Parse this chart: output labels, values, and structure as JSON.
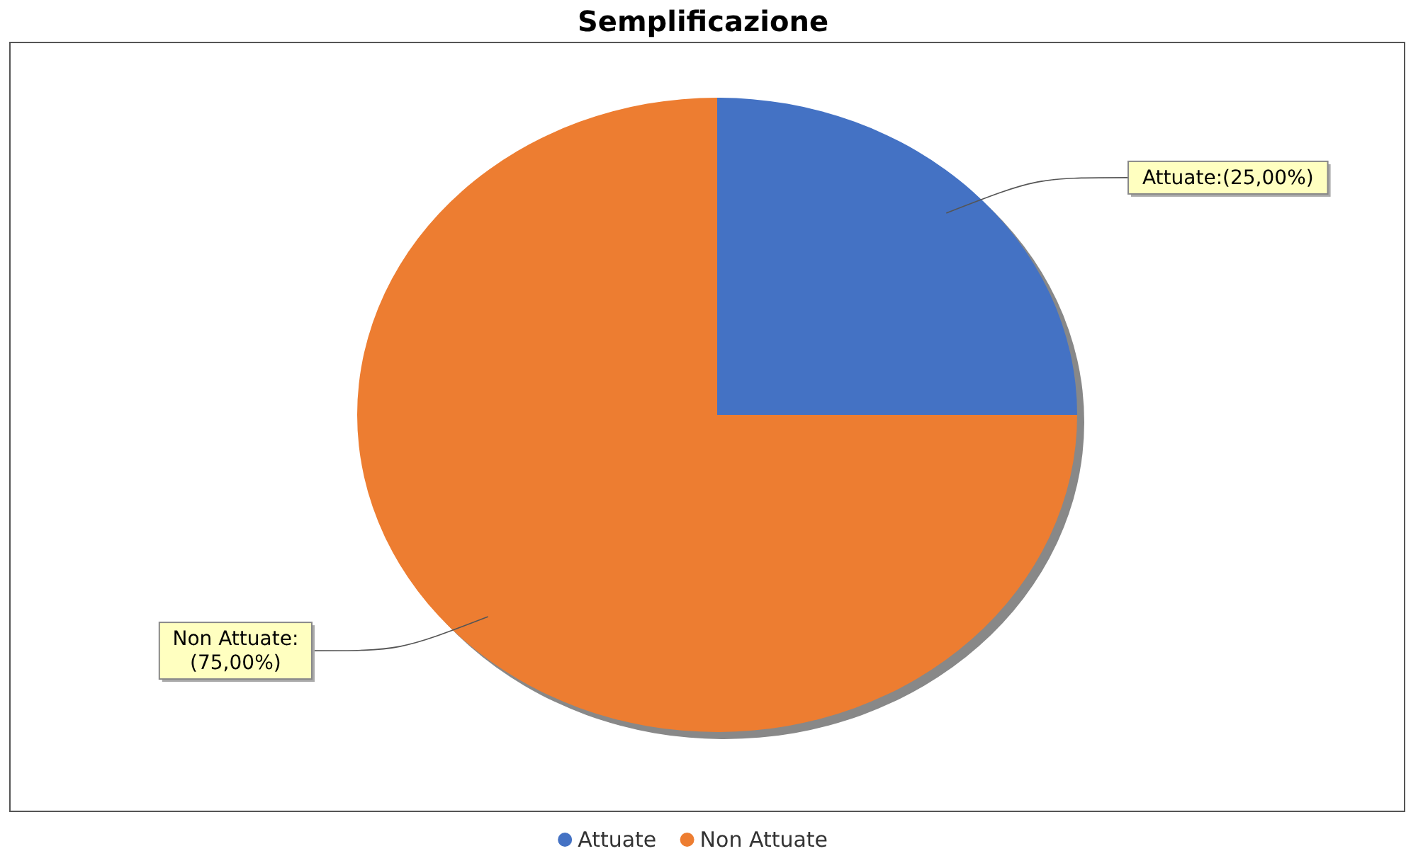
{
  "chart_data": {
    "type": "pie",
    "title": "Semplificazione",
    "categories": [
      "Attuate",
      "Non Attuate"
    ],
    "values": [
      25,
      75
    ],
    "colors": [
      "#4472c4",
      "#ed7d31"
    ],
    "value_labels": [
      "Attuate:(25,00%)",
      "Non Attuate:(75,00%)"
    ],
    "legend": "bottom"
  }
}
